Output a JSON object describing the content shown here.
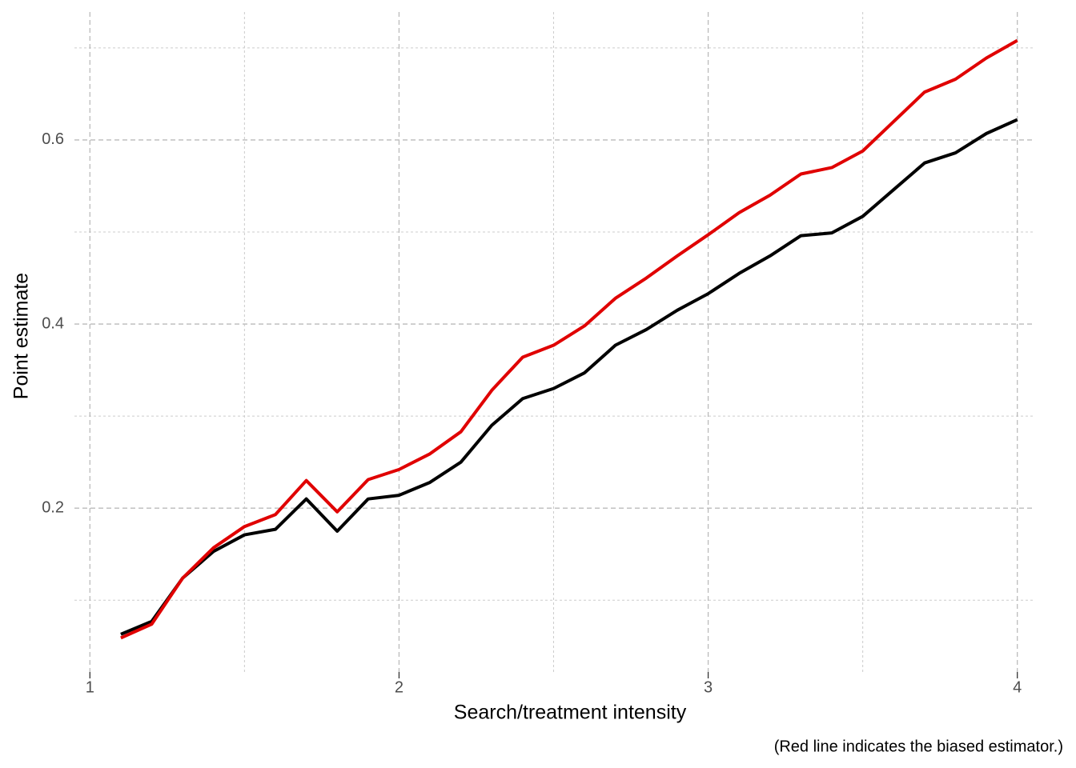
{
  "chart_data": {
    "type": "line",
    "x_label": "Search/treatment intensity",
    "y_label": "Point estimate",
    "caption": "(Red line indicates the biased estimator.)",
    "x": [
      1.1,
      1.2,
      1.3,
      1.4,
      1.5,
      1.6,
      1.7,
      1.8,
      1.9,
      2.0,
      2.1,
      2.2,
      2.3,
      2.4,
      2.5,
      2.6,
      2.7,
      2.8,
      2.9,
      3.0,
      3.1,
      3.2,
      3.3,
      3.4,
      3.5,
      3.6,
      3.7,
      3.8,
      3.9,
      4.0
    ],
    "series": [
      {
        "color": "#000000",
        "values": [
          0.063,
          0.077,
          0.124,
          0.153,
          0.171,
          0.177,
          0.21,
          0.175,
          0.21,
          0.214,
          0.228,
          0.25,
          0.29,
          0.319,
          0.33,
          0.347,
          0.377,
          0.394,
          0.415,
          0.433,
          0.455,
          0.474,
          0.496,
          0.499,
          0.517,
          0.546,
          0.575,
          0.586,
          0.607,
          0.622
        ]
      },
      {
        "color": "#e00000",
        "values": [
          0.059,
          0.074,
          0.124,
          0.157,
          0.18,
          0.193,
          0.23,
          0.196,
          0.231,
          0.242,
          0.259,
          0.283,
          0.328,
          0.364,
          0.377,
          0.398,
          0.428,
          0.45,
          0.474,
          0.497,
          0.521,
          0.54,
          0.563,
          0.57,
          0.588,
          0.62,
          0.652,
          0.666,
          0.689,
          0.708
        ]
      }
    ],
    "xlim": [
      0.95,
      4.05
    ],
    "xticks": [
      1,
      2,
      3,
      4
    ],
    "xminor": [
      1.5,
      2.5,
      3.5
    ],
    "ylim": [
      0.022,
      0.739
    ],
    "yticks": [
      0.2,
      0.4,
      0.6
    ],
    "yminor": [
      0.1,
      0.3,
      0.5,
      0.7
    ],
    "grid": true
  }
}
